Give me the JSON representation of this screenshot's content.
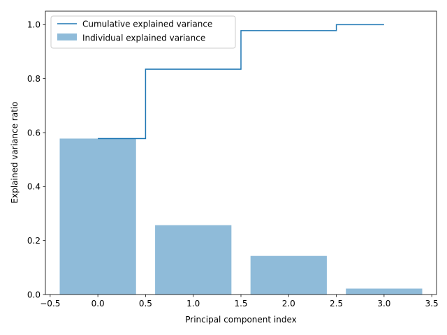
{
  "chart_data": {
    "type": "bar",
    "xlabel": "Principal component index",
    "ylabel": "Explained variance ratio",
    "xlim": [
      -0.55,
      3.55
    ],
    "ylim": [
      0.0,
      1.05
    ],
    "x_ticks": [
      -0.5,
      0.0,
      0.5,
      1.0,
      1.5,
      2.0,
      2.5,
      3.0,
      3.5
    ],
    "x_tick_labels": [
      "−0.5",
      "0.0",
      "0.5",
      "1.0",
      "1.5",
      "2.0",
      "2.5",
      "3.0",
      "3.5"
    ],
    "y_ticks": [
      0.0,
      0.2,
      0.4,
      0.6,
      0.8,
      1.0
    ],
    "y_tick_labels": [
      "0.0",
      "0.2",
      "0.4",
      "0.6",
      "0.8",
      "1.0"
    ],
    "categories": [
      0,
      1,
      2,
      3
    ],
    "series": [
      {
        "name": "Individual explained variance",
        "kind": "bar",
        "color": "#1f77b4",
        "opacity": 0.5,
        "bar_width": 0.8,
        "values": [
          0.578,
          0.257,
          0.143,
          0.022
        ]
      },
      {
        "name": "Cumulative explained variance",
        "kind": "step-mid",
        "color": "#1f77b4",
        "values": [
          0.578,
          0.835,
          0.978,
          1.0
        ]
      }
    ],
    "legend_position": "upper-left",
    "grid": false
  }
}
